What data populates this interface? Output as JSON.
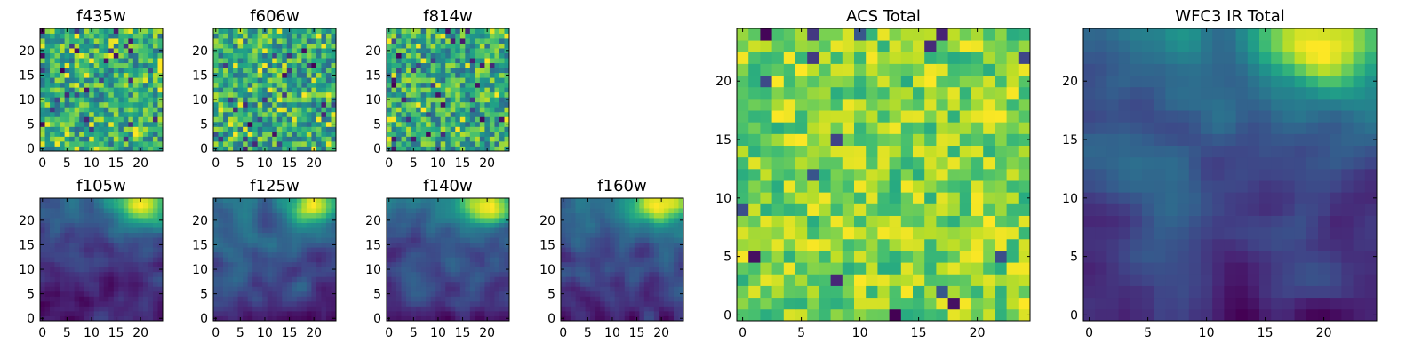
{
  "figure": {
    "grid": false,
    "colormap": "viridis",
    "legend": "none"
  },
  "chart_data": [
    {
      "type": "heatmap",
      "title": "f435w",
      "id": "f435w",
      "xticks": [
        0,
        5,
        10,
        15,
        20
      ],
      "yticks": [
        0,
        5,
        10,
        15,
        20
      ],
      "xlim": [
        -0.5,
        24.5
      ],
      "ylim": [
        -0.5,
        24.5
      ],
      "size": 25,
      "pattern": "noise",
      "seed": 11
    },
    {
      "type": "heatmap",
      "title": "f606w",
      "id": "f606w",
      "xticks": [
        0,
        5,
        10,
        15,
        20
      ],
      "yticks": [
        0,
        5,
        10,
        15,
        20
      ],
      "xlim": [
        -0.5,
        24.5
      ],
      "ylim": [
        -0.5,
        24.5
      ],
      "size": 25,
      "pattern": "noise",
      "seed": 23
    },
    {
      "type": "heatmap",
      "title": "f814w",
      "id": "f814w",
      "xticks": [
        0,
        5,
        10,
        15,
        20
      ],
      "yticks": [
        0,
        5,
        10,
        15,
        20
      ],
      "xlim": [
        -0.5,
        24.5
      ],
      "ylim": [
        -0.5,
        24.5
      ],
      "size": 25,
      "pattern": "noise",
      "seed": 37
    },
    {
      "type": "heatmap",
      "title": "f105w",
      "id": "f105w",
      "xticks": [
        0,
        5,
        10,
        15,
        20
      ],
      "yticks": [
        0,
        5,
        10,
        15,
        20
      ],
      "xlim": [
        -0.5,
        24.5
      ],
      "ylim": [
        -0.5,
        24.5
      ],
      "size": 25,
      "pattern": "gradient",
      "seed": 41
    },
    {
      "type": "heatmap",
      "title": "f125w",
      "id": "f125w",
      "xticks": [
        0,
        5,
        10,
        15,
        20
      ],
      "yticks": [
        0,
        5,
        10,
        15,
        20
      ],
      "xlim": [
        -0.5,
        24.5
      ],
      "ylim": [
        -0.5,
        24.5
      ],
      "size": 25,
      "pattern": "gradient",
      "seed": 53
    },
    {
      "type": "heatmap",
      "title": "f140w",
      "id": "f140w",
      "xticks": [
        0,
        5,
        10,
        15,
        20
      ],
      "yticks": [
        0,
        5,
        10,
        15,
        20
      ],
      "xlim": [
        -0.5,
        24.5
      ],
      "ylim": [
        -0.5,
        24.5
      ],
      "size": 25,
      "pattern": "gradient",
      "seed": 67
    },
    {
      "type": "heatmap",
      "title": "f160w",
      "id": "f160w",
      "xticks": [
        0,
        5,
        10,
        15,
        20
      ],
      "yticks": [
        0,
        5,
        10,
        15,
        20
      ],
      "xlim": [
        -0.5,
        24.5
      ],
      "ylim": [
        -0.5,
        24.5
      ],
      "size": 25,
      "pattern": "gradient",
      "seed": 79
    },
    {
      "type": "heatmap",
      "title": "ACS Total",
      "id": "acs",
      "xticks": [
        0,
        5,
        10,
        15,
        20
      ],
      "yticks": [
        0,
        5,
        10,
        15,
        20
      ],
      "xlim": [
        -0.5,
        24.5
      ],
      "ylim": [
        -0.5,
        24.5
      ],
      "size": 25,
      "pattern": "acs",
      "seed": 97
    },
    {
      "type": "heatmap",
      "title": "WFC3 IR Total",
      "id": "wfc3",
      "xticks": [
        0,
        5,
        10,
        15,
        20
      ],
      "yticks": [
        0,
        5,
        10,
        15,
        20
      ],
      "xlim": [
        -0.5,
        24.5
      ],
      "ylim": [
        -0.5,
        24.5
      ],
      "size": 25,
      "pattern": "gradient",
      "seed": 101
    }
  ]
}
